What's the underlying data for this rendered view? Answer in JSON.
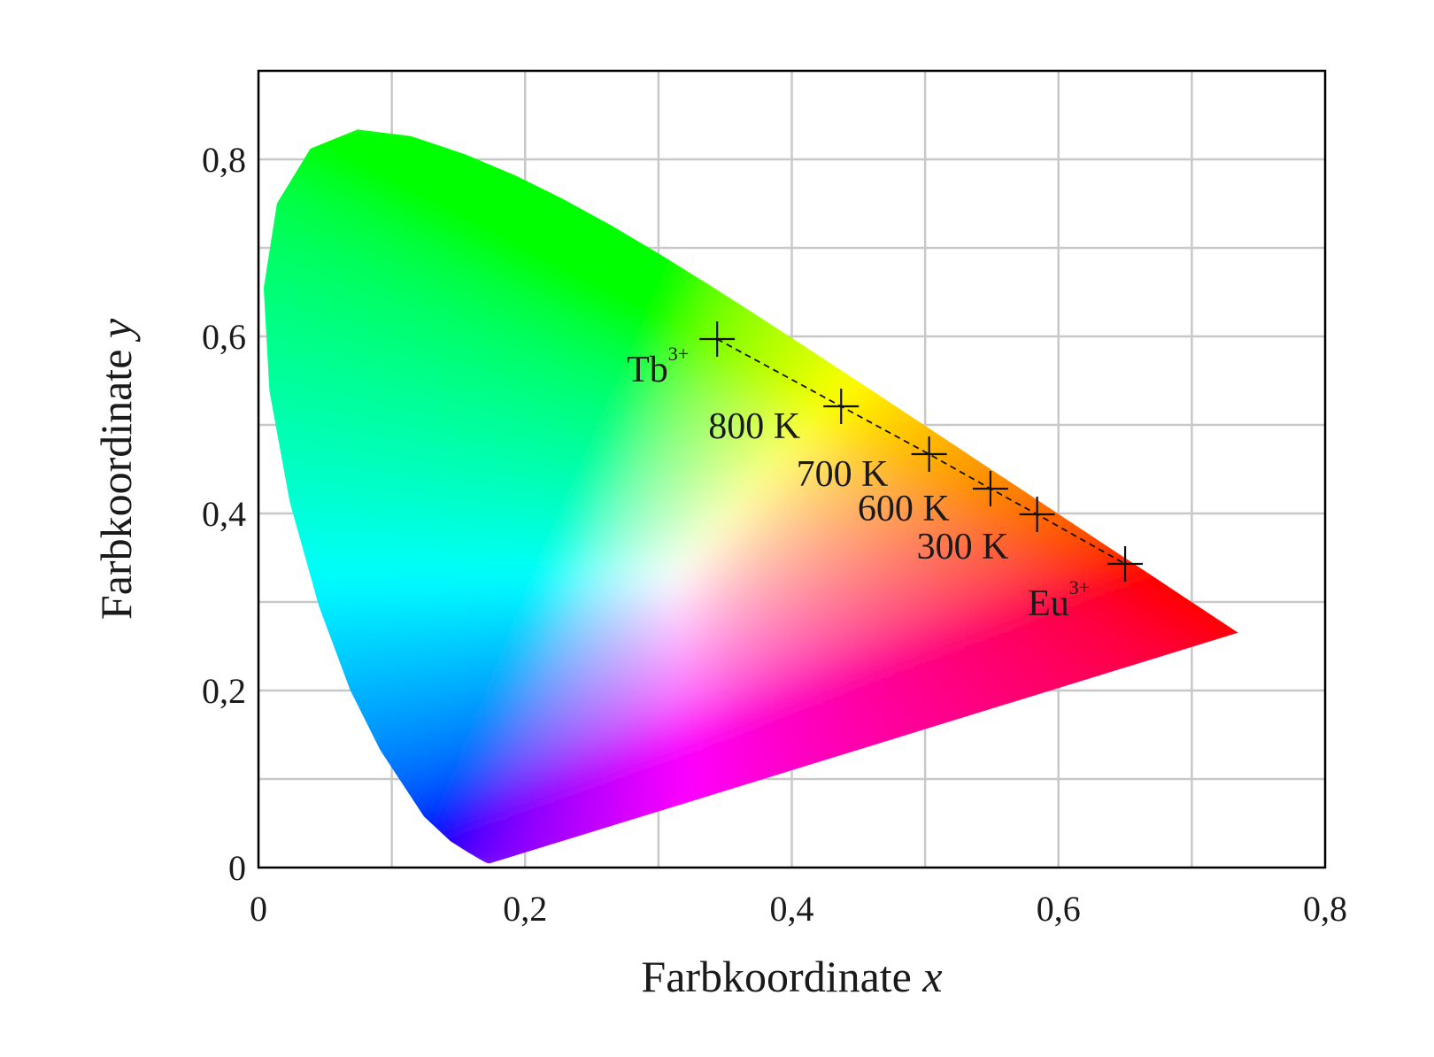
{
  "chart_data": {
    "type": "scatter",
    "background": "CIE 1931 chromaticity diagram",
    "xlabel": "Farbkoordinate",
    "xlabel_var": "x",
    "ylabel": "Farbkoordinate",
    "ylabel_var": "y",
    "xlim": [
      0,
      0.8
    ],
    "ylim": [
      0,
      0.9
    ],
    "xticks": [
      {
        "value": 0,
        "label": "0"
      },
      {
        "value": 0.2,
        "label": "0,2"
      },
      {
        "value": 0.4,
        "label": "0,4"
      },
      {
        "value": 0.6,
        "label": "0,6"
      },
      {
        "value": 0.8,
        "label": "0,8"
      }
    ],
    "yticks": [
      {
        "value": 0,
        "label": "0"
      },
      {
        "value": 0.2,
        "label": "0,2"
      },
      {
        "value": 0.4,
        "label": "0,4"
      },
      {
        "value": 0.6,
        "label": "0,6"
      },
      {
        "value": 0.8,
        "label": "0,8"
      }
    ],
    "grid": true,
    "grid_step_x": 0.1,
    "grid_step_y": 0.1,
    "points": [
      {
        "x": 0.344,
        "y": 0.597,
        "label": "Tb",
        "sup": "3+"
      },
      {
        "x": 0.437,
        "y": 0.521,
        "label": "800 K"
      },
      {
        "x": 0.503,
        "y": 0.467,
        "label": "700 K"
      },
      {
        "x": 0.549,
        "y": 0.428,
        "label": "600 K"
      },
      {
        "x": 0.584,
        "y": 0.399,
        "label": "300 K"
      },
      {
        "x": 0.65,
        "y": 0.343,
        "label": "Eu",
        "sup": "3+"
      }
    ],
    "trend_line": "dashed",
    "colors": {
      "grid": "#c8c8c8",
      "marker": "#111111",
      "frame": "#000000",
      "text": "#1a1a1a"
    }
  }
}
